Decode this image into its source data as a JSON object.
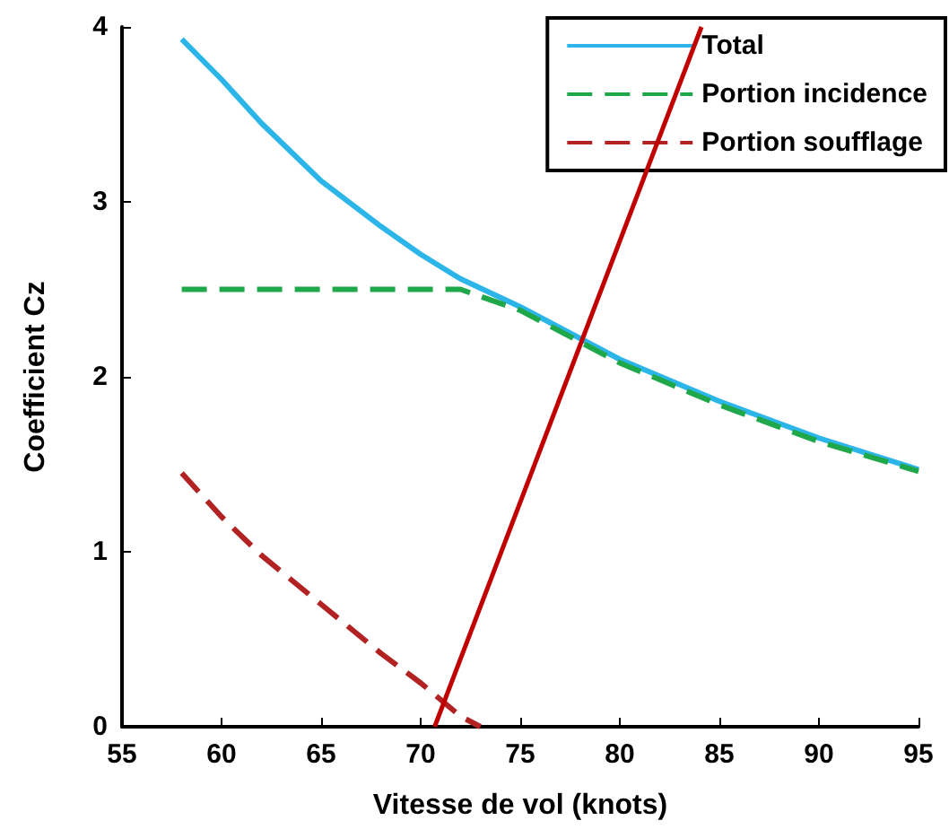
{
  "chart_data": {
    "type": "line",
    "xlabel": "Vitesse de vol (knots)",
    "ylabel": "Coefficient Cz",
    "xlim": [
      55,
      95
    ],
    "xticks": [
      55,
      60,
      65,
      70,
      75,
      80,
      85,
      90,
      95
    ],
    "ylim": [
      0,
      4
    ],
    "yticks": [
      0,
      1,
      2,
      3,
      4
    ],
    "grid": false,
    "legend": "top right",
    "marker": "none",
    "series": [
      {
        "name": "Total",
        "color": "#2bb5e8",
        "line_style": "solid",
        "x": [
          58,
          60,
          62,
          65,
          68,
          70,
          72,
          75,
          80,
          85,
          90,
          95
        ],
        "values": [
          3.93,
          3.7,
          3.45,
          3.12,
          2.86,
          2.7,
          2.56,
          2.4,
          2.1,
          1.86,
          1.65,
          1.47
        ]
      },
      {
        "name": "Portion incidence",
        "color": "#1fa84a",
        "line_style": "dashed",
        "x": [
          58,
          65,
          72,
          75,
          80,
          85,
          90,
          95
        ],
        "values": [
          2.5,
          2.5,
          2.5,
          2.38,
          2.08,
          1.84,
          1.63,
          1.46
        ]
      },
      {
        "name": "Portion soufflage",
        "color": "#b22222",
        "line_style": "dashed",
        "x": [
          58,
          60,
          62,
          65,
          68,
          70,
          72,
          73
        ],
        "values": [
          1.45,
          1.2,
          0.98,
          0.7,
          0.42,
          0.25,
          0.06,
          0
        ]
      },
      {
        "color": "#c00000",
        "line_style": "solid",
        "x": [
          70.7,
          84.1
        ],
        "values": [
          0,
          4
        ]
      }
    ]
  }
}
